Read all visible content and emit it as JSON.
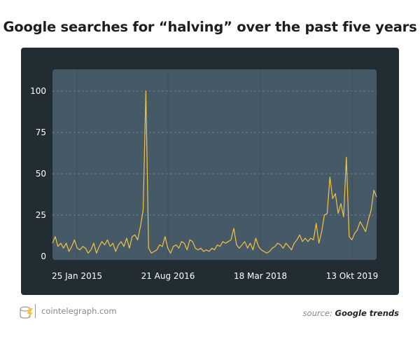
{
  "chart_data": {
    "type": "line",
    "title": "Google searches for “halving” over the past five years",
    "xlabel": "",
    "ylabel": "",
    "ylim": [
      0,
      100
    ],
    "yticks": [
      0,
      25,
      50,
      75,
      100
    ],
    "xtick_labels": [
      "25 Jan 2015",
      "21 Aug 2016",
      "18 Mar 2018",
      "13 Okt 2019"
    ],
    "grid": true,
    "series": [
      {
        "name": "halving",
        "color": "#f5c342",
        "values": [
          8,
          12,
          6,
          8,
          5,
          8,
          3,
          6,
          10,
          5,
          4,
          6,
          5,
          2,
          4,
          8,
          2,
          6,
          9,
          7,
          10,
          6,
          8,
          3,
          7,
          9,
          6,
          11,
          5,
          12,
          13,
          10,
          18,
          28,
          100,
          5,
          2,
          3,
          4,
          7,
          6,
          12,
          5,
          2,
          6,
          7,
          5,
          9,
          8,
          4,
          10,
          9,
          5,
          4,
          5,
          3,
          4,
          3,
          5,
          4,
          7,
          6,
          9,
          8,
          9,
          10,
          17,
          7,
          5,
          7,
          9,
          5,
          8,
          4,
          11,
          6,
          4,
          3,
          2,
          3,
          5,
          6,
          8,
          7,
          5,
          8,
          6,
          4,
          8,
          10,
          13,
          9,
          11,
          9,
          11,
          10,
          20,
          8,
          15,
          25,
          26,
          48,
          35,
          38,
          26,
          32,
          24,
          60,
          12,
          10,
          14,
          16,
          21,
          18,
          15,
          22,
          28,
          40,
          36
        ]
      }
    ]
  },
  "footer": {
    "site": "cointelegraph.com",
    "source_prefix": "source:",
    "source_name": "Google trends"
  }
}
